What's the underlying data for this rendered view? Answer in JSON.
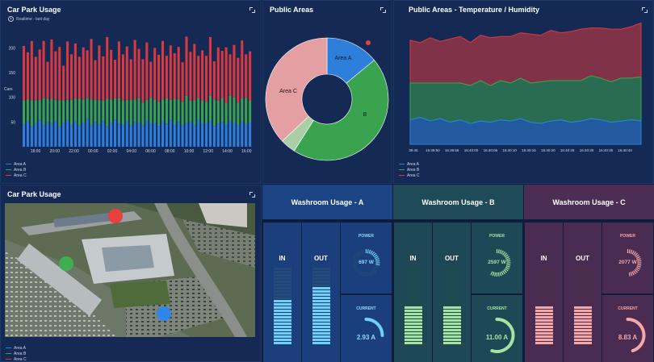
{
  "car_park_chart": {
    "title": "Car Park Usage",
    "subtitle": "Realtime - last day",
    "legend": [
      {
        "name": "Area A",
        "color": "#2e7fdc"
      },
      {
        "name": "Area B",
        "color": "#3aa34f"
      },
      {
        "name": "Area C",
        "color": "#d9393f"
      }
    ]
  },
  "public_areas": {
    "title": "Public Areas",
    "slices": [
      {
        "label": "Area A",
        "color": "#2e7fdc"
      },
      {
        "label": "B",
        "color": "#3aa34f"
      },
      {
        "label": "Area C",
        "color": "#e39fa2"
      }
    ]
  },
  "temp_humidity": {
    "title": "Public Areas - Temperature / Humidity",
    "legend": [
      {
        "name": "Area A",
        "color": "#2e7fdc"
      },
      {
        "name": "Area B",
        "color": "#3aa34f"
      },
      {
        "name": "Area C",
        "color": "#d9393f"
      }
    ]
  },
  "map_panel": {
    "title": "Car Park Usage",
    "legend": [
      {
        "name": "Area A",
        "color": "#2e7fdc"
      },
      {
        "name": "Area B",
        "color": "#3aa34f"
      },
      {
        "name": "Area C",
        "color": "#d9393f"
      }
    ],
    "markers": [
      {
        "name": "Area C",
        "color": "#e8403c"
      },
      {
        "name": "Area B",
        "color": "#3fae4f"
      },
      {
        "name": "Area A",
        "color": "#2f86e6"
      }
    ]
  },
  "washrooms": [
    {
      "title": "Washroom Usage - A",
      "in_label": "IN",
      "out_label": "OUT",
      "power_label": "POWER",
      "power_value": "697 W",
      "power_fraction": 0.3,
      "current_label": "CURRENT",
      "current_value": "2.93 A",
      "current_fraction": 0.25,
      "in_level": 0.6,
      "out_level": 0.75,
      "color": "#6fd0f5",
      "dim": "#244a7a",
      "head_bg": "#1c4383",
      "card_bg": "#1b3f7c",
      "text_color": "#ffffff",
      "label_color": "#8fd9ff",
      "value_color": "#8fd9ff"
    },
    {
      "title": "Washroom Usage - B",
      "in_label": "IN",
      "out_label": "OUT",
      "power_label": "POWER",
      "power_value": "2597 W",
      "power_fraction": 0.6,
      "current_label": "CURRENT",
      "current_value": "11.00 A",
      "current_fraction": 0.55,
      "in_level": 0.5,
      "out_level": 0.5,
      "color": "#a6e3a1",
      "dim": "#1f4a50",
      "head_bg": "#1f4b58",
      "card_bg": "#1e4855",
      "text_color": "#ffffff",
      "label_color": "#a6e3a1",
      "value_color": "#a6e3a1"
    },
    {
      "title": "Washroom Usage - C",
      "in_label": "IN",
      "out_label": "OUT",
      "power_label": "POWER",
      "power_value": "2077 W",
      "power_fraction": 0.5,
      "current_label": "CURRENT",
      "current_value": "8.83 A",
      "current_fraction": 0.45,
      "in_level": 0.5,
      "out_level": 0.5,
      "color": "#f4a7a7",
      "dim": "#4a2c4c",
      "head_bg": "#4c2e55",
      "card_bg": "#4a2c52",
      "text_color": "#ffffff",
      "label_color": "#f4a7a7",
      "value_color": "#f4a7a7"
    }
  ],
  "chart_data": [
    {
      "type": "bar",
      "title": "Car Park Usage",
      "ylabel": "Cars",
      "ylim": [
        0,
        230
      ],
      "yticks": [
        50,
        100,
        150,
        200
      ],
      "x_ticks": [
        "18:00",
        "20:00",
        "22:00",
        "00:00",
        "02:00",
        "04:00",
        "06:00",
        "08:00",
        "10:00",
        "12:00",
        "14:00",
        "16:00"
      ],
      "stacked": true,
      "series": [
        {
          "name": "Area A",
          "color": "#2e7fdc",
          "values": [
            46,
            52,
            42,
            48,
            55,
            44,
            50,
            47,
            53,
            41,
            49,
            54,
            45,
            51,
            43,
            48,
            56,
            44,
            50,
            46,
            52,
            42,
            49,
            55,
            47,
            45,
            51,
            43,
            50,
            48,
            44,
            53,
            46,
            49,
            42,
            52,
            47,
            55,
            45,
            50,
            43,
            48,
            51,
            44,
            54,
            46,
            49,
            52,
            42,
            47,
            50,
            45,
            53,
            48,
            44,
            51,
            46,
            49
          ]
        },
        {
          "name": "Area B",
          "color": "#3aa34f",
          "values": [
            48,
            44,
            52,
            46,
            40,
            55,
            47,
            50,
            42,
            53,
            45,
            41,
            50,
            46,
            54,
            48,
            43,
            52,
            45,
            49,
            41,
            55,
            47,
            43,
            51,
            48,
            44,
            52,
            46,
            50,
            45,
            42,
            53,
            47,
            49,
            44,
            51,
            40,
            52,
            46,
            48,
            55,
            43,
            50,
            45,
            47,
            42,
            51,
            54,
            46,
            48,
            43,
            50,
            52,
            45,
            47,
            53,
            44
          ]
        },
        {
          "name": "Area C",
          "color": "#d9393f",
          "values": [
            110,
            95,
            120,
            88,
            102,
            115,
            75,
            120,
            98,
            108,
            70,
            118,
            92,
            112,
            85,
            105,
            96,
            122,
            80,
            110,
            90,
            125,
            100,
            78,
            115,
            94,
            108,
            82,
            120,
            100,
            88,
            116,
            73,
            104,
            95,
            118,
            86,
            110,
            92,
            106,
            80,
            120,
            98,
            114,
            85,
            102,
            93,
            119,
            77,
            108,
            96,
            113,
            84,
            106,
            91,
            117,
            88,
            100
          ]
        }
      ]
    },
    {
      "type": "pie",
      "title": "Public Areas",
      "slices": [
        {
          "label": "Area A",
          "value": 14
        },
        {
          "label": "B",
          "value": 45
        },
        {
          "label": "",
          "value": 4
        },
        {
          "label": "Area C",
          "value": 37
        }
      ]
    },
    {
      "type": "area",
      "title": "Public Areas - Temperature / Humidity",
      "x_ticks": [
        "39:45",
        "16:39:50",
        "16:39:55",
        "16:40:00",
        "16:40:05",
        "16:40:10",
        "16:40:15",
        "16:40:20",
        "16:40:25",
        "16:40:30",
        "16:40:35",
        "16:40:40"
      ],
      "ylim": [
        0,
        100
      ],
      "stacked": true,
      "series": [
        {
          "name": "Area A",
          "color": "#2e7fdc",
          "values": [
            20,
            22,
            19,
            21,
            18,
            20,
            17,
            19,
            18,
            20,
            19,
            21,
            18,
            17,
            19,
            20,
            18,
            19,
            21,
            20,
            18,
            19,
            20,
            19
          ]
        },
        {
          "name": "Area B",
          "color": "#3aa34f",
          "values": [
            30,
            28,
            31,
            29,
            32,
            30,
            31,
            33,
            30,
            32,
            31,
            33,
            32,
            34,
            33,
            32,
            34,
            33,
            35,
            34,
            33,
            35,
            34,
            36
          ]
        },
        {
          "name": "Area C",
          "color": "#d9393f",
          "values": [
            35,
            33,
            37,
            34,
            36,
            38,
            35,
            37,
            39,
            36,
            38,
            37,
            40,
            38,
            41,
            39,
            40,
            42,
            39,
            41,
            43,
            40,
            42,
            44
          ]
        }
      ]
    }
  ]
}
